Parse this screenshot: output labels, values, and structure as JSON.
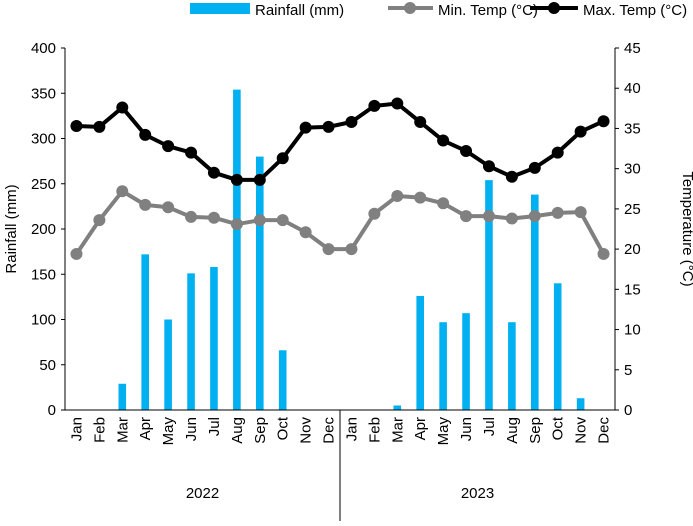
{
  "chart_data": {
    "type": "bar+line",
    "categories": [
      "Jan",
      "Feb",
      "Mar",
      "Apr",
      "May",
      "Jun",
      "Jul",
      "Aug",
      "Sep",
      "Oct",
      "Nov",
      "Dec",
      "Jan",
      "Feb",
      "Mar",
      "Apr",
      "May",
      "Jun",
      "Jul",
      "Aug",
      "Sep",
      "Oct",
      "Nov",
      "Dec"
    ],
    "groups": [
      "2022",
      "2023"
    ],
    "ylabel": "Rainfall (mm)",
    "y2label": "Temperature (°C)",
    "ylim": [
      0,
      400
    ],
    "y2lim": [
      0,
      45
    ],
    "yticks": [
      "0",
      "50",
      "100",
      "150",
      "200",
      "250",
      "300",
      "350",
      "400"
    ],
    "y2ticks": [
      "0",
      "5",
      "10",
      "15",
      "20",
      "25",
      "30",
      "35",
      "40",
      "45"
    ],
    "legend_position": "top",
    "grid": false,
    "series": [
      {
        "name": "Rainfall (mm)",
        "type": "bar",
        "axis": "left",
        "color": "#00b0f0",
        "values": [
          0,
          0,
          29,
          172,
          100,
          151,
          158,
          354,
          280,
          66,
          0,
          0,
          0,
          0,
          5,
          126,
          97,
          107,
          254,
          97,
          238,
          140,
          13,
          0
        ]
      },
      {
        "name": "Min. Temp (°C)",
        "type": "line",
        "axis": "right",
        "color": "#808080",
        "values": [
          19.4,
          23.6,
          27.2,
          25.5,
          25.2,
          24.0,
          23.9,
          23.1,
          23.6,
          23.6,
          22.1,
          20.0,
          20.0,
          24.4,
          26.6,
          26.4,
          25.7,
          24.1,
          24.1,
          23.8,
          24.1,
          24.5,
          24.6,
          19.4
        ]
      },
      {
        "name": "Max. Temp (°C)",
        "type": "line",
        "axis": "right",
        "color": "#000000",
        "values": [
          35.3,
          35.2,
          37.6,
          34.2,
          32.8,
          32.0,
          29.5,
          28.6,
          28.6,
          31.3,
          35.1,
          35.2,
          35.8,
          37.8,
          38.1,
          35.8,
          33.5,
          32.2,
          30.3,
          29.0,
          30.1,
          32.0,
          34.6,
          35.9
        ]
      }
    ]
  }
}
